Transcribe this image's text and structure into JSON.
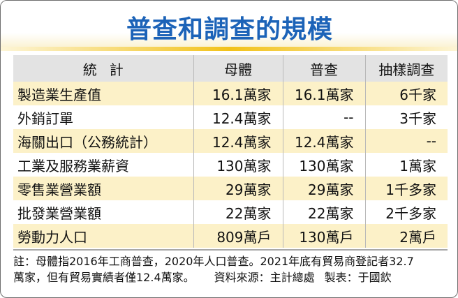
{
  "title": "普查和調查的規模",
  "table": {
    "headers": [
      "統計",
      "母體",
      "普查",
      "抽樣調查"
    ],
    "rows": [
      [
        "製造業生產值",
        "16.1萬家",
        "16.1萬家",
        "6千家"
      ],
      [
        "外銷訂單",
        "12.4萬家",
        "--",
        "3千家"
      ],
      [
        "海關出口（公務統計）",
        "12.4萬家",
        "12.4萬家",
        "--"
      ],
      [
        "工業及服務業薪資",
        "130萬家",
        "130萬家",
        "1萬家"
      ],
      [
        "零售業營業額",
        "29萬家",
        "29萬家",
        "1千多家"
      ],
      [
        "批發業營業額",
        "22萬家",
        "22萬家",
        "2千多家"
      ],
      [
        "勞動力人口",
        "809萬戶",
        "130萬戶",
        "2萬戶"
      ]
    ]
  },
  "note": {
    "line1": "註：母體指2016年工商普查，2020年人口普查。2021年底有貿易商登記者32.7",
    "line2": "萬家，但有貿易實績者僅12.4萬家。",
    "source": "資料來源：主計總處",
    "maker": "製表：于國欽"
  },
  "colors": {
    "title": "#1c63b8",
    "accent_rule": "#f2c21a",
    "row_highlight": "#fcf1c8",
    "header_bg": "#e3e3e3"
  }
}
